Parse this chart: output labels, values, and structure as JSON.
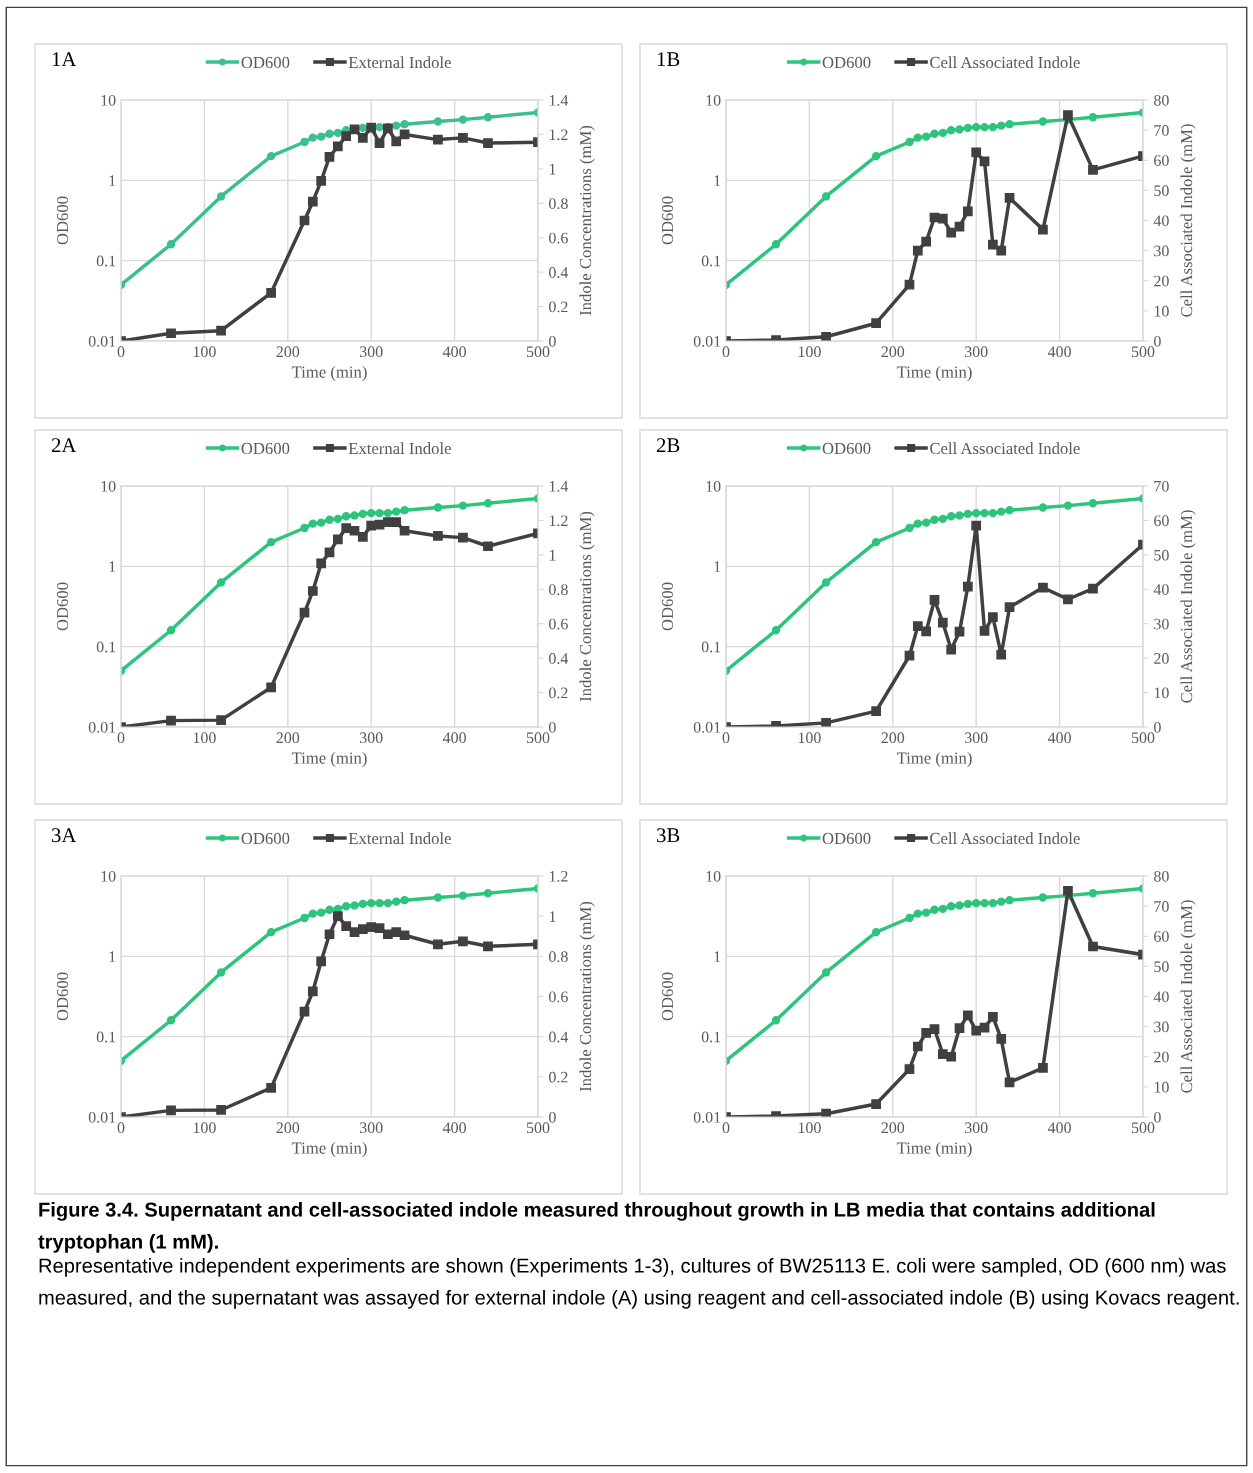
{
  "chart_data": [
    {
      "type": "line",
      "title": "1A",
      "xlabel": "Time (min)",
      "ylabel": "OD600",
      "y2label": "Indole Concentrations (mM)",
      "log": "y",
      "grid": true,
      "legend": "top",
      "x": [
        0,
        60,
        120,
        180,
        220,
        230,
        240,
        250,
        260,
        270,
        280,
        290,
        300,
        310,
        320,
        330,
        340,
        380,
        410,
        440,
        500
      ],
      "xlim": [
        0,
        500
      ],
      "xticks": [
        0,
        100,
        200,
        300,
        400,
        500
      ],
      "ylim": [
        0.01,
        10
      ],
      "yticks": [
        0.01,
        0.1,
        1,
        10
      ],
      "y2lim": [
        0,
        1.4
      ],
      "y2ticks": [
        0,
        0.2,
        0.4,
        0.6,
        0.8,
        1,
        1.2,
        1.4
      ],
      "series": [
        {
          "name": "OD600",
          "color": "#3cbf8c",
          "marker": "circle",
          "values": [
            0.05,
            0.16,
            0.63,
            2.0,
            3.0,
            3.4,
            3.5,
            3.8,
            3.9,
            4.2,
            4.3,
            4.5,
            4.6,
            4.6,
            4.6,
            4.8,
            5.0,
            5.4,
            5.7,
            6.1,
            7.0
          ]
        },
        {
          "name": "External Indole",
          "color": "#404040",
          "marker": "square",
          "axis": "y2",
          "values": [
            0,
            0.045,
            0.06,
            0.28,
            0.7,
            0.81,
            0.93,
            1.07,
            1.13,
            1.19,
            1.23,
            1.18,
            1.24,
            1.15,
            1.235,
            1.16,
            1.2,
            1.17,
            1.18,
            1.15,
            1.155
          ]
        }
      ]
    },
    {
      "type": "line",
      "title": "1B",
      "xlabel": "Time (min)",
      "ylabel": "OD600",
      "y2label": "Cell Associated Indole (mM)",
      "log": "y",
      "grid": true,
      "legend": "top",
      "x": [
        0,
        60,
        120,
        180,
        220,
        230,
        240,
        250,
        260,
        270,
        280,
        290,
        300,
        310,
        320,
        330,
        340,
        380,
        410,
        440,
        500
      ],
      "xlim": [
        0,
        500
      ],
      "xticks": [
        0,
        100,
        200,
        300,
        400,
        500
      ],
      "ylim": [
        0.01,
        10
      ],
      "yticks": [
        0.01,
        0.1,
        1,
        10
      ],
      "y2lim": [
        0,
        80
      ],
      "y2ticks": [
        0,
        10,
        20,
        30,
        40,
        50,
        60,
        70,
        80
      ],
      "series": [
        {
          "name": "OD600",
          "color": "#2dc47c",
          "marker": "circle",
          "values": [
            0.05,
            0.16,
            0.63,
            2.0,
            3.0,
            3.4,
            3.5,
            3.8,
            3.9,
            4.2,
            4.3,
            4.5,
            4.6,
            4.6,
            4.6,
            4.8,
            5.0,
            5.4,
            5.7,
            6.1,
            7.0
          ]
        },
        {
          "name": "Cell Associated Indole",
          "color": "#404040",
          "marker": "square",
          "axis": "y2",
          "values": [
            0,
            0.3,
            1.4,
            5.9,
            18.7,
            30,
            33,
            41,
            40.6,
            36,
            38,
            43,
            62.6,
            59.6,
            32,
            30,
            47.5,
            37,
            75,
            56.8,
            61.4
          ]
        }
      ]
    },
    {
      "type": "line",
      "title": "2A",
      "xlabel": "Time (min)",
      "ylabel": "OD600",
      "y2label": "Indole Concentrations (mM)",
      "log": "y",
      "grid": true,
      "legend": "top",
      "x": [
        0,
        60,
        120,
        180,
        220,
        230,
        240,
        250,
        260,
        270,
        280,
        290,
        300,
        310,
        320,
        330,
        340,
        380,
        410,
        440,
        500
      ],
      "xlim": [
        0,
        500
      ],
      "xticks": [
        0,
        100,
        200,
        300,
        400,
        500
      ],
      "ylim": [
        0.01,
        10
      ],
      "yticks": [
        0.01,
        0.1,
        1,
        10
      ],
      "y2lim": [
        0,
        1.4
      ],
      "y2ticks": [
        0,
        0.2,
        0.4,
        0.6,
        0.8,
        1,
        1.2,
        1.4
      ],
      "series": [
        {
          "name": "OD600",
          "color": "#2dc47c",
          "marker": "circle",
          "values": [
            0.05,
            0.16,
            0.63,
            2.0,
            3.0,
            3.4,
            3.5,
            3.8,
            3.9,
            4.2,
            4.3,
            4.5,
            4.6,
            4.6,
            4.6,
            4.8,
            5.0,
            5.4,
            5.7,
            6.1,
            7.0
          ]
        },
        {
          "name": "External Indole",
          "color": "#404040",
          "marker": "square",
          "axis": "y2",
          "values": [
            0,
            0.037,
            0.04,
            0.23,
            0.665,
            0.79,
            0.95,
            1.015,
            1.09,
            1.155,
            1.14,
            1.105,
            1.17,
            1.175,
            1.19,
            1.19,
            1.14,
            1.11,
            1.1,
            1.05,
            1.125
          ]
        }
      ]
    },
    {
      "type": "line",
      "title": "2B",
      "xlabel": "Time (min)",
      "ylabel": "OD600",
      "y2label": "Cell Associated Indole (mM)",
      "log": "y",
      "grid": true,
      "legend": "top",
      "x": [
        0,
        60,
        120,
        180,
        220,
        230,
        240,
        250,
        260,
        270,
        280,
        290,
        300,
        310,
        320,
        330,
        340,
        380,
        410,
        440,
        500
      ],
      "xlim": [
        0,
        500
      ],
      "xticks": [
        0,
        100,
        200,
        300,
        400,
        500
      ],
      "ylim": [
        0.01,
        10
      ],
      "yticks": [
        0.01,
        0.1,
        1,
        10
      ],
      "y2lim": [
        0,
        70
      ],
      "y2ticks": [
        0,
        10,
        20,
        30,
        40,
        50,
        60,
        70
      ],
      "series": [
        {
          "name": "OD600",
          "color": "#2dc47c",
          "marker": "circle",
          "values": [
            0.05,
            0.16,
            0.63,
            2.0,
            3.0,
            3.4,
            3.5,
            3.8,
            3.9,
            4.2,
            4.3,
            4.5,
            4.6,
            4.6,
            4.6,
            4.8,
            5.0,
            5.4,
            5.7,
            6.1,
            7.0
          ]
        },
        {
          "name": "Cell Associated Indole",
          "color": "#404040",
          "marker": "square",
          "axis": "y2",
          "values": [
            0,
            0.3,
            1.2,
            4.6,
            20.7,
            29.3,
            27.8,
            36.9,
            30.3,
            22.5,
            27.7,
            40.8,
            58.5,
            27.9,
            31.9,
            21,
            34.8,
            40.5,
            37.1,
            40.2,
            53
          ]
        }
      ]
    },
    {
      "type": "line",
      "title": "3A",
      "xlabel": "Time (min)",
      "ylabel": "OD600",
      "y2label": "Indole Concentrations (mM)",
      "log": "y",
      "grid": true,
      "legend": "top",
      "x": [
        0,
        60,
        120,
        180,
        220,
        230,
        240,
        250,
        260,
        270,
        280,
        290,
        300,
        310,
        320,
        330,
        340,
        380,
        410,
        440,
        500
      ],
      "xlim": [
        0,
        500
      ],
      "xticks": [
        0,
        100,
        200,
        300,
        400,
        500
      ],
      "ylim": [
        0.01,
        10
      ],
      "yticks": [
        0.01,
        0.1,
        1,
        10
      ],
      "y2lim": [
        0,
        1.2
      ],
      "y2ticks": [
        0,
        0.2,
        0.4,
        0.6,
        0.8,
        1,
        1.2
      ],
      "series": [
        {
          "name": "OD600",
          "color": "#2dc47c",
          "marker": "circle",
          "values": [
            0.05,
            0.16,
            0.63,
            2.0,
            3.0,
            3.4,
            3.5,
            3.8,
            3.9,
            4.2,
            4.3,
            4.5,
            4.6,
            4.6,
            4.6,
            4.8,
            5.0,
            5.4,
            5.7,
            6.1,
            7.0
          ]
        },
        {
          "name": "External Indole",
          "color": "#404040",
          "marker": "square",
          "axis": "y2",
          "values": [
            0,
            0.033,
            0.035,
            0.145,
            0.525,
            0.625,
            0.775,
            0.91,
            1.0,
            0.95,
            0.92,
            0.935,
            0.945,
            0.94,
            0.91,
            0.92,
            0.905,
            0.86,
            0.875,
            0.85,
            0.86
          ]
        }
      ]
    },
    {
      "type": "line",
      "title": "3B",
      "xlabel": "Time (min)",
      "ylabel": "OD600",
      "y2label": "Cell Associated Indole (mM)",
      "log": "y",
      "grid": true,
      "legend": "top",
      "x": [
        0,
        60,
        120,
        180,
        220,
        230,
        240,
        250,
        260,
        270,
        280,
        290,
        300,
        310,
        320,
        330,
        340,
        380,
        410,
        440,
        500
      ],
      "xlim": [
        0,
        500
      ],
      "xticks": [
        0,
        100,
        200,
        300,
        400,
        500
      ],
      "ylim": [
        0.01,
        10
      ],
      "yticks": [
        0.01,
        0.1,
        1,
        10
      ],
      "y2lim": [
        0,
        80
      ],
      "y2ticks": [
        0,
        10,
        20,
        30,
        40,
        50,
        60,
        70,
        80
      ],
      "annotations": [
        "Figure 3.4. Supernatant and cell-associated indole measured throughout growth in LB media that contains additional tryptophan (1 mM).",
        "Representative independent experiments are shown (Experiments 1-3), cultures of BW25113 E. coli were sampled, OD (600 nm) was measured, and the supernatant was assayed for external indole (A) using reagent and cell-associated indole (B) using Kovacs reagent."
      ],
      "series": [
        {
          "name": "OD600",
          "color": "#2dc47c",
          "marker": "circle",
          "values": [
            0.05,
            0.16,
            0.63,
            2.0,
            3.0,
            3.4,
            3.5,
            3.8,
            3.9,
            4.2,
            4.3,
            4.5,
            4.6,
            4.6,
            4.6,
            4.8,
            5.0,
            5.4,
            5.7,
            6.1,
            7.0
          ]
        },
        {
          "name": "Cell Associated Indole",
          "color": "#404040",
          "marker": "square",
          "axis": "y2",
          "values": [
            0,
            0.3,
            1.1,
            4.3,
            15.9,
            23.4,
            27.9,
            29.2,
            20.9,
            20,
            29.5,
            33.7,
            28.7,
            29.7,
            33.2,
            25.9,
            11.5,
            16.3,
            75.1,
            56.6,
            53.9
          ]
        }
      ]
    }
  ]
}
